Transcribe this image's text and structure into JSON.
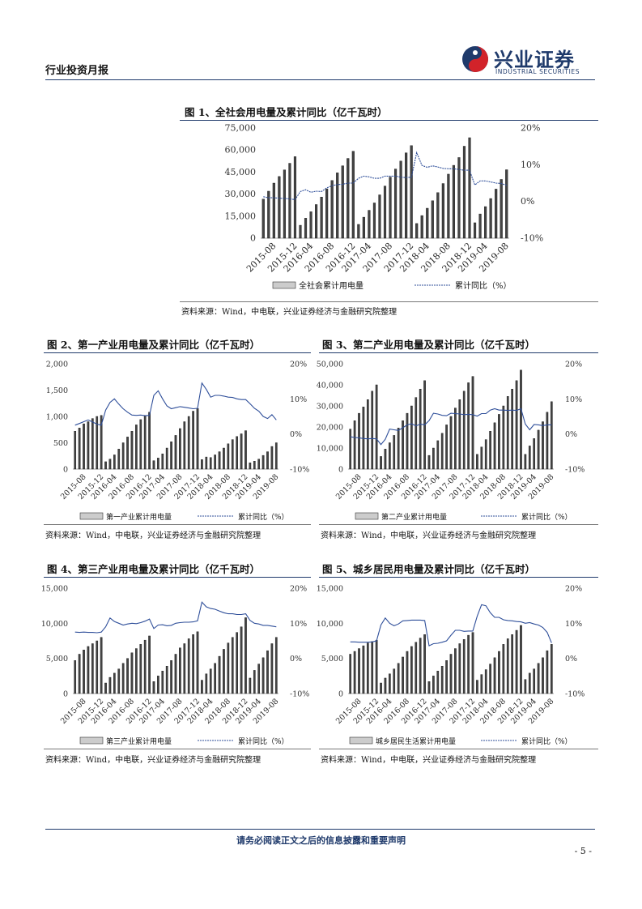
{
  "header": {
    "report_type": "行业投资月报",
    "logo_cn": "兴业证券",
    "logo_en": "INDUSTRIAL SECURITIES"
  },
  "colors": {
    "accent": "#1f3a6b",
    "line": "#2f4f9a"
  },
  "figures": [
    {
      "title": "图 1、全社会用电量及累计同比（亿千瓦时）",
      "source": "资料来源：Wind，中电联，兴业证券经济与金融研究院整理"
    },
    {
      "title": "图 2、第一产业用电量及累计同比（亿千瓦时）",
      "source": "资料来源：Wind，中电联，兴业证券经济与金融研究院整理"
    },
    {
      "title": "图 3、第二产业用电量及累计同比（亿千瓦时）",
      "source": "资料来源：Wind，中电联，兴业证券经济与金融研究院整理"
    },
    {
      "title": "图 4、第三产业用电量及累计同比（亿千瓦时）",
      "source": "资料来源：Wind，中电联，兴业证券经济与金融研究院整理"
    },
    {
      "title": "图 5、城乡居民用电量及累计同比（亿千瓦时）",
      "source": "资料来源：Wind，中电联，兴业证券经济与金融研究院整理"
    }
  ],
  "chart_data": [
    {
      "type": "bar+line",
      "title": "图 1、全社会用电量及累计同比（亿千瓦时）",
      "xticks": [
        "2015-08",
        "2015-12",
        "2016-04",
        "2016-08",
        "2016-12",
        "2017-04",
        "2017-08",
        "2017-12",
        "2018-04",
        "2018-08",
        "2018-12",
        "2019-04",
        "2019-08"
      ],
      "x": [
        "2015-06",
        "2015-07",
        "2015-08",
        "2015-09",
        "2015-10",
        "2015-11",
        "2015-12",
        "2016-02",
        "2016-03",
        "2016-04",
        "2016-05",
        "2016-06",
        "2016-07",
        "2016-08",
        "2016-09",
        "2016-10",
        "2016-11",
        "2016-12",
        "2017-02",
        "2017-03",
        "2017-04",
        "2017-05",
        "2017-06",
        "2017-07",
        "2017-08",
        "2017-09",
        "2017-10",
        "2017-11",
        "2017-12",
        "2018-02",
        "2018-03",
        "2018-04",
        "2018-05",
        "2018-06",
        "2018-07",
        "2018-08",
        "2018-09",
        "2018-10",
        "2018-11",
        "2018-12",
        "2019-02",
        "2019-03",
        "2019-04",
        "2019-05",
        "2019-06",
        "2019-07",
        "2019-08"
      ],
      "series": [
        {
          "name": "全社会累计用电量",
          "kind": "bar",
          "axis": "left",
          "values": [
            26600,
            32000,
            37500,
            42000,
            46500,
            51000,
            55500,
            8800,
            13600,
            18000,
            22900,
            28000,
            33600,
            39300,
            44500,
            49300,
            54300,
            59200,
            9400,
            14300,
            19000,
            24000,
            29500,
            35500,
            41600,
            47100,
            52500,
            58100,
            63000,
            10000,
            15400,
            20400,
            25500,
            31000,
            37200,
            43600,
            49600,
            54900,
            62600,
            68400,
            10500,
            16500,
            21500,
            27000,
            33400,
            40000,
            46600
          ]
        },
        {
          "name": "累计同比（%）",
          "kind": "line",
          "axis": "right",
          "values": [
            1.3,
            1.0,
            1.0,
            0.9,
            0.8,
            0.7,
            0.5,
            2.7,
            3.2,
            2.5,
            2.8,
            2.7,
            3.7,
            4.3,
            4.6,
            4.7,
            5.0,
            5.0,
            6.3,
            6.9,
            6.7,
            6.3,
            6.3,
            6.9,
            6.9,
            6.9,
            6.6,
            6.5,
            6.6,
            13.3,
            9.8,
            9.3,
            9.7,
            9.4,
            9.0,
            8.9,
            8.9,
            8.7,
            8.5,
            8.5,
            4.5,
            5.6,
            5.6,
            5.3,
            5.0,
            4.9,
            4.4
          ]
        }
      ],
      "ylim_left": [
        0,
        75000
      ],
      "yticks_left": [
        "0",
        "15,000",
        "30,000",
        "45,000",
        "60,000",
        "75,000"
      ],
      "ylim_right": [
        -10,
        20
      ],
      "yticks_right": [
        "-10%",
        "0%",
        "10%",
        "20%"
      ],
      "legend": [
        "全社会累计用电量",
        "累计同比（%）"
      ],
      "legend_pos": "bottom"
    },
    {
      "type": "bar+line",
      "title": "图 2、第一产业用电量及累计同比（亿千瓦时）",
      "xticks": [
        "2015-08",
        "2015-12",
        "2016-04",
        "2016-08",
        "2016-12",
        "2017-04",
        "2017-08",
        "2017-12",
        "2018-04",
        "2018-08",
        "2018-12",
        "2019-04",
        "2019-08"
      ],
      "x": [
        "2015-06",
        "2015-07",
        "2015-08",
        "2015-09",
        "2015-10",
        "2015-11",
        "2015-12",
        "2016-02",
        "2016-03",
        "2016-04",
        "2016-05",
        "2016-06",
        "2016-07",
        "2016-08",
        "2016-09",
        "2016-10",
        "2016-11",
        "2016-12",
        "2017-02",
        "2017-03",
        "2017-04",
        "2017-05",
        "2017-06",
        "2017-07",
        "2017-08",
        "2017-09",
        "2017-10",
        "2017-11",
        "2017-12",
        "2018-02",
        "2018-03",
        "2018-04",
        "2018-05",
        "2018-06",
        "2018-07",
        "2018-08",
        "2018-09",
        "2018-10",
        "2018-11",
        "2018-12",
        "2019-02",
        "2019-03",
        "2019-04",
        "2019-05",
        "2019-06",
        "2019-07",
        "2019-08"
      ],
      "series": [
        {
          "name": "第一产业累计用电量",
          "kind": "bar",
          "axis": "left",
          "values": [
            720,
            780,
            860,
            900,
            960,
            1000,
            1020,
            140,
            190,
            270,
            380,
            500,
            610,
            720,
            840,
            940,
            1020,
            1080,
            160,
            210,
            290,
            400,
            520,
            640,
            770,
            900,
            1000,
            1100,
            1150,
            180,
            230,
            220,
            270,
            330,
            400,
            480,
            560,
            620,
            670,
            730,
            120,
            150,
            190,
            260,
            330,
            430,
            500
          ]
        },
        {
          "name": "累计同比（%）",
          "kind": "line",
          "axis": "right",
          "values": [
            2.5,
            3.0,
            3.5,
            4.0,
            3.4,
            2.8,
            2.5,
            6.8,
            9.0,
            10.0,
            8.5,
            7.2,
            6.2,
            5.4,
            5.3,
            5.4,
            5.2,
            5.3,
            11.0,
            12.3,
            10.0,
            8.0,
            7.2,
            7.5,
            7.8,
            7.6,
            7.4,
            7.2,
            7.3,
            14.5,
            12.7,
            10.5,
            11.0,
            11.0,
            10.8,
            10.5,
            10.4,
            10.0,
            9.8,
            9.8,
            8.6,
            7.3,
            6.5,
            5.0,
            4.4,
            5.5,
            4.0
          ]
        }
      ],
      "ylim_left": [
        0,
        2000
      ],
      "yticks_left": [
        "0",
        "500",
        "1,000",
        "1,500",
        "2,000"
      ],
      "ylim_right": [
        -10,
        20
      ],
      "yticks_right": [
        "-10%",
        "0%",
        "10%",
        "20%"
      ],
      "legend": [
        "第一产业累计用电量",
        "累计同比（%）"
      ],
      "legend_pos": "bottom"
    },
    {
      "type": "bar+line",
      "title": "图 3、第二产业用电量及累计同比（亿千瓦时）",
      "xticks": [
        "2015-08",
        "2015-12",
        "2016-04",
        "2016-08",
        "2016-12",
        "2017-04",
        "2017-08",
        "2017-12",
        "2018-04",
        "2018-08",
        "2018-12",
        "2019-04",
        "2019-08"
      ],
      "x": [
        "2015-06",
        "2015-07",
        "2015-08",
        "2015-09",
        "2015-10",
        "2015-11",
        "2015-12",
        "2016-02",
        "2016-03",
        "2016-04",
        "2016-05",
        "2016-06",
        "2016-07",
        "2016-08",
        "2016-09",
        "2016-10",
        "2016-11",
        "2016-12",
        "2017-02",
        "2017-03",
        "2017-04",
        "2017-05",
        "2017-06",
        "2017-07",
        "2017-08",
        "2017-09",
        "2017-10",
        "2017-11",
        "2017-12",
        "2018-02",
        "2018-03",
        "2018-04",
        "2018-05",
        "2018-06",
        "2018-07",
        "2018-08",
        "2018-09",
        "2018-10",
        "2018-11",
        "2018-12",
        "2019-02",
        "2019-03",
        "2019-04",
        "2019-05",
        "2019-06",
        "2019-07",
        "2019-08"
      ],
      "series": [
        {
          "name": "第二产业累计用电量",
          "kind": "bar",
          "axis": "left",
          "values": [
            19000,
            23000,
            26500,
            29500,
            33000,
            37000,
            40000,
            6000,
            9500,
            12500,
            16000,
            19500,
            23000,
            26500,
            30000,
            34000,
            38000,
            42000,
            6500,
            10000,
            13500,
            17000,
            21000,
            25000,
            29000,
            33000,
            37000,
            41000,
            44000,
            7000,
            10500,
            14000,
            18000,
            22000,
            26000,
            30000,
            34500,
            38000,
            42000,
            47000,
            7000,
            11000,
            14500,
            18500,
            22500,
            27000,
            32000
          ]
        },
        {
          "name": "累计同比（%）",
          "kind": "line",
          "axis": "right",
          "values": [
            -0.8,
            -1.0,
            -1.1,
            -1.3,
            -1.4,
            -1.3,
            -1.4,
            -3.0,
            -1.5,
            1.4,
            1.2,
            1.0,
            1.8,
            2.6,
            2.9,
            2.3,
            2.8,
            2.6,
            3.8,
            5.9,
            5.7,
            5.3,
            5.2,
            5.9,
            5.8,
            5.7,
            5.5,
            5.6,
            5.5,
            5.1,
            5.8,
            5.8,
            6.8,
            7.2,
            6.8,
            6.8,
            6.7,
            6.8,
            6.7,
            7.2,
            2.8,
            1.2,
            2.7,
            2.6,
            2.4,
            2.6,
            2.6
          ]
        }
      ],
      "ylim_left": [
        0,
        50000
      ],
      "yticks_left": [
        "0",
        "10,000",
        "20,000",
        "30,000",
        "40,000",
        "50,000"
      ],
      "ylim_right": [
        -10,
        20
      ],
      "yticks_right": [
        "-10%",
        "0%",
        "10%",
        "20%"
      ],
      "legend": [
        "第二产业累计用电量",
        "累计同比（%）"
      ],
      "legend_pos": "bottom"
    },
    {
      "type": "bar+line",
      "title": "图 4、第三产业用电量及累计同比（亿千瓦时）",
      "xticks": [
        "2015-08",
        "2015-12",
        "2016-04",
        "2016-08",
        "2016-12",
        "2017-04",
        "2017-08",
        "2017-12",
        "2018-04",
        "2018-08",
        "2018-12",
        "2019-04",
        "2019-08"
      ],
      "x": [
        "2015-06",
        "2015-07",
        "2015-08",
        "2015-09",
        "2015-10",
        "2015-11",
        "2015-12",
        "2016-02",
        "2016-03",
        "2016-04",
        "2016-05",
        "2016-06",
        "2016-07",
        "2016-08",
        "2016-09",
        "2016-10",
        "2016-11",
        "2016-12",
        "2017-02",
        "2017-03",
        "2017-04",
        "2017-05",
        "2017-06",
        "2017-07",
        "2017-08",
        "2017-09",
        "2017-10",
        "2017-11",
        "2017-12",
        "2018-02",
        "2018-03",
        "2018-04",
        "2018-05",
        "2018-06",
        "2018-07",
        "2018-08",
        "2018-09",
        "2018-10",
        "2018-11",
        "2018-12",
        "2019-02",
        "2019-03",
        "2019-04",
        "2019-05",
        "2019-06",
        "2019-07",
        "2019-08"
      ],
      "series": [
        {
          "name": "第三产业累计用电量",
          "kind": "bar",
          "axis": "left",
          "values": [
            4700,
            5600,
            6200,
            6700,
            7100,
            7500,
            8000,
            1500,
            2300,
            2900,
            3500,
            4300,
            5000,
            5800,
            6400,
            7000,
            7600,
            8200,
            1700,
            2500,
            3200,
            3900,
            4700,
            5600,
            6500,
            7100,
            7800,
            8400,
            8800,
            1900,
            2800,
            3500,
            4300,
            5300,
            6300,
            7200,
            8000,
            8700,
            9500,
            10800,
            2200,
            3300,
            4200,
            5100,
            6100,
            7100,
            8000
          ]
        },
        {
          "name": "累计同比（%）",
          "kind": "line",
          "axis": "right",
          "values": [
            7.5,
            7.4,
            7.5,
            7.4,
            7.4,
            7.3,
            7.5,
            9.0,
            11.5,
            10.5,
            10.0,
            9.5,
            9.8,
            10.0,
            9.9,
            10.2,
            10.6,
            11.2,
            8.5,
            9.5,
            9.6,
            9.3,
            9.4,
            10.0,
            10.2,
            10.3,
            10.3,
            10.4,
            10.7,
            16.0,
            14.7,
            14.2,
            14.0,
            13.5,
            13.0,
            12.7,
            12.7,
            12.5,
            12.5,
            12.7,
            10.8,
            10.0,
            9.8,
            9.4,
            9.4,
            9.2,
            9.0
          ]
        }
      ],
      "ylim_left": [
        0,
        15000
      ],
      "yticks_left": [
        "0",
        "5,000",
        "10,000",
        "15,000"
      ],
      "ylim_right": [
        -10,
        20
      ],
      "yticks_right": [
        "-10%",
        "0%",
        "10%",
        "20%"
      ],
      "legend": [
        "第三产业累计用电量",
        "累计同比（%）"
      ],
      "legend_pos": "bottom"
    },
    {
      "type": "bar+line",
      "title": "图 5、城乡居民用电量及累计同比（亿千瓦时）",
      "xticks": [
        "2015-08",
        "2015-12",
        "2016-04",
        "2016-08",
        "2016-12",
        "2017-04",
        "2017-08",
        "2017-12",
        "2018-04",
        "2018-08",
        "2018-12",
        "2019-04",
        "2019-08"
      ],
      "x": [
        "2015-06",
        "2015-07",
        "2015-08",
        "2015-09",
        "2015-10",
        "2015-11",
        "2015-12",
        "2016-02",
        "2016-03",
        "2016-04",
        "2016-05",
        "2016-06",
        "2016-07",
        "2016-08",
        "2016-09",
        "2016-10",
        "2016-11",
        "2016-12",
        "2017-02",
        "2017-03",
        "2017-04",
        "2017-05",
        "2017-06",
        "2017-07",
        "2017-08",
        "2017-09",
        "2017-10",
        "2017-11",
        "2017-12",
        "2018-02",
        "2018-03",
        "2018-04",
        "2018-05",
        "2018-06",
        "2018-07",
        "2018-08",
        "2018-09",
        "2018-10",
        "2018-11",
        "2018-12",
        "2019-02",
        "2019-03",
        "2019-04",
        "2019-05",
        "2019-06",
        "2019-07",
        "2019-08"
      ],
      "series": [
        {
          "name": "城乡居民生活累计用电量",
          "kind": "bar",
          "axis": "left",
          "values": [
            5600,
            6000,
            6400,
            6800,
            7200,
            7400,
            7600,
            1500,
            2200,
            2800,
            3500,
            4300,
            5200,
            6000,
            6700,
            7300,
            7900,
            8400,
            1700,
            2500,
            3200,
            3900,
            4700,
            5600,
            6400,
            7100,
            7700,
            8300,
            8700,
            1900,
            2700,
            3400,
            4200,
            5100,
            6000,
            7000,
            7800,
            8400,
            9000,
            9700,
            2000,
            2900,
            3500,
            4300,
            5100,
            6100,
            7000
          ]
        },
        {
          "name": "累计同比（%）",
          "kind": "line",
          "axis": "right",
          "values": [
            4.7,
            4.7,
            4.6,
            4.6,
            4.6,
            4.7,
            5.0,
            9.5,
            11.5,
            10.0,
            9.3,
            9.8,
            10.7,
            10.8,
            10.9,
            10.9,
            10.9,
            10.8,
            3.6,
            4.2,
            4.3,
            4.6,
            5.0,
            6.6,
            8.0,
            8.0,
            7.7,
            7.8,
            7.8,
            12.0,
            15.3,
            15.0,
            13.0,
            11.7,
            11.7,
            11.0,
            10.8,
            10.7,
            10.5,
            10.4,
            10.0,
            10.2,
            9.8,
            9.5,
            8.8,
            7.4,
            4.4
          ]
        }
      ],
      "ylim_left": [
        0,
        15000
      ],
      "yticks_left": [
        "0",
        "5,000",
        "10,000",
        "15,000"
      ],
      "ylim_right": [
        -10,
        20
      ],
      "yticks_right": [
        "-10%",
        "0%",
        "10%",
        "20%"
      ],
      "legend": [
        "城乡居民生活累计用电量",
        "累计同比（%）"
      ],
      "legend_pos": "bottom"
    }
  ],
  "footer": {
    "disclaimer": "请务必阅读正文之后的信息披露和重要声明",
    "page_number": "- 5 -"
  }
}
